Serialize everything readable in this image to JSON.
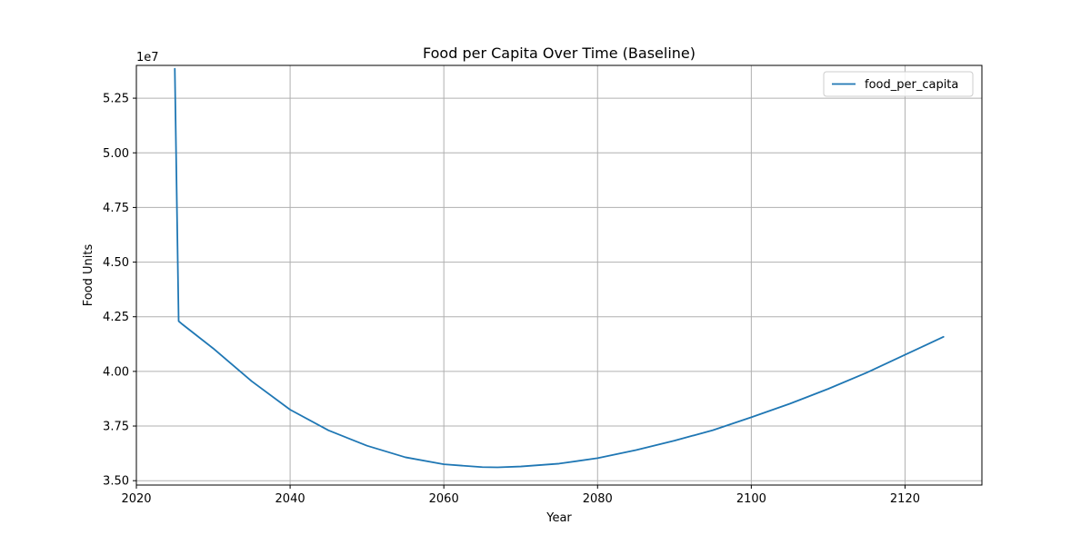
{
  "chart_data": {
    "type": "line",
    "title": "Food per Capita Over Time (Baseline)",
    "xlabel": "Year",
    "ylabel": "Food Units",
    "y_offset_label": "1e7",
    "xlim": [
      2020,
      2130
    ],
    "ylim": [
      34800000,
      54000000
    ],
    "x_ticks": [
      2020,
      2040,
      2060,
      2080,
      2100,
      2120
    ],
    "y_ticks": [
      35000000,
      37500000,
      40000000,
      42500000,
      45000000,
      47500000,
      50000000,
      52500000
    ],
    "x_tick_labels": [
      "2020",
      "2040",
      "2060",
      "2080",
      "2100",
      "2120"
    ],
    "y_tick_labels": [
      "3.50",
      "3.75",
      "4.00",
      "4.25",
      "4.50",
      "4.75",
      "5.00",
      "5.25"
    ],
    "grid": true,
    "legend_position": "top-right",
    "series": [
      {
        "name": "food_per_capita",
        "color": "#1f77b4",
        "x": [
          2025,
          2025.5,
          2026,
          2028,
          2030,
          2035,
          2040,
          2045,
          2050,
          2055,
          2060,
          2065,
          2067,
          2070,
          2075,
          2080,
          2085,
          2090,
          2095,
          2100,
          2105,
          2110,
          2115,
          2120,
          2125
        ],
        "y": [
          53850000,
          42300000,
          42150000,
          41600000,
          41050000,
          39550000,
          38250000,
          37300000,
          36600000,
          36070000,
          35750000,
          35620000,
          35610000,
          35650000,
          35780000,
          36030000,
          36400000,
          36830000,
          37310000,
          37900000,
          38520000,
          39200000,
          39940000,
          40760000,
          41580000
        ]
      }
    ]
  }
}
